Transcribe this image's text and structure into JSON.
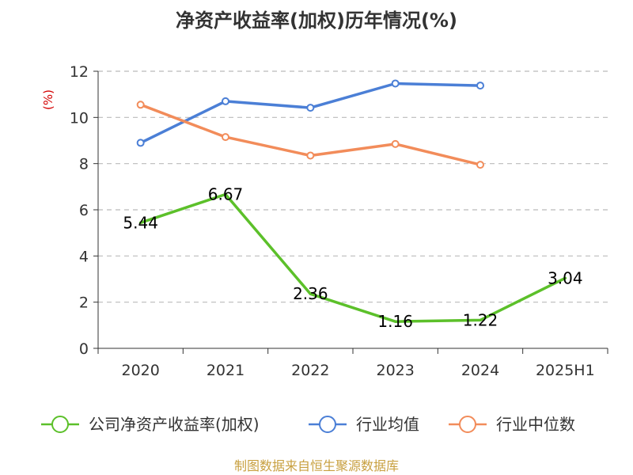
{
  "title": "净资产收益率(加权)历年情况(%)",
  "unit_label": "(%)",
  "source": "制图数据来自恒生聚源数据库",
  "colors": {
    "company": "#5cc02a",
    "industry_avg": "#4b7fd6",
    "industry_median": "#f28c5a",
    "grid": "#bbbbbb",
    "axis": "#333333",
    "unit": "#d40000",
    "source": "#c8a040"
  },
  "chart_data": {
    "type": "line",
    "title": "净资产收益率(加权)历年情况(%)",
    "ylabel": "(%)",
    "xlabel": "",
    "categories": [
      "2020",
      "2021",
      "2022",
      "2023",
      "2024",
      "2025H1"
    ],
    "y_ticks": [
      0,
      2,
      4,
      6,
      8,
      10,
      12
    ],
    "ylim": [
      0,
      12
    ],
    "grid": true,
    "legend_position": "bottom",
    "series": [
      {
        "name": "公司净资产收益率(加权)",
        "values": [
          5.44,
          6.67,
          2.36,
          1.16,
          1.22,
          3.04
        ],
        "labels": [
          "5.44",
          "6.67",
          "2.36",
          "1.16",
          "1.22",
          "3.04"
        ],
        "color": "#5cc02a",
        "markers": false
      },
      {
        "name": "行业均值",
        "values": [
          8.9,
          10.7,
          10.42,
          11.47,
          11.38,
          null
        ],
        "color": "#4b7fd6",
        "markers": true
      },
      {
        "name": "行业中位数",
        "values": [
          10.55,
          9.15,
          8.35,
          8.85,
          7.95,
          null
        ],
        "color": "#f28c5a",
        "markers": true
      }
    ]
  }
}
